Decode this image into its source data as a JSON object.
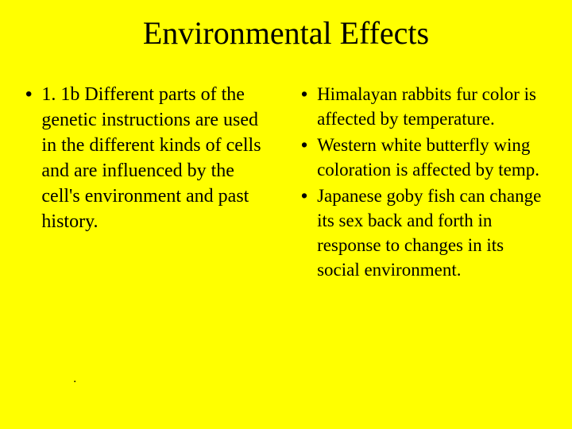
{
  "slide": {
    "background_color": "#ffff00",
    "text_color": "#000000",
    "title": "Environmental Effects",
    "title_fontsize": 40,
    "body_fontsize": 24,
    "font_family": "Times New Roman",
    "bullet_char": "•",
    "columns": {
      "left": {
        "items": [
          "1. 1b Different parts of the genetic instructions are used in the different kinds of cells and are influenced by the cell's environment and past history."
        ]
      },
      "right": {
        "items": [
          "Himalayan rabbits fur color is affected by temperature.",
          "Western white butterfly wing coloration is affected by temp.",
          "Japanese goby fish can change its sex back and forth in response to changes in its social environment."
        ]
      }
    },
    "stray_mark": "."
  }
}
